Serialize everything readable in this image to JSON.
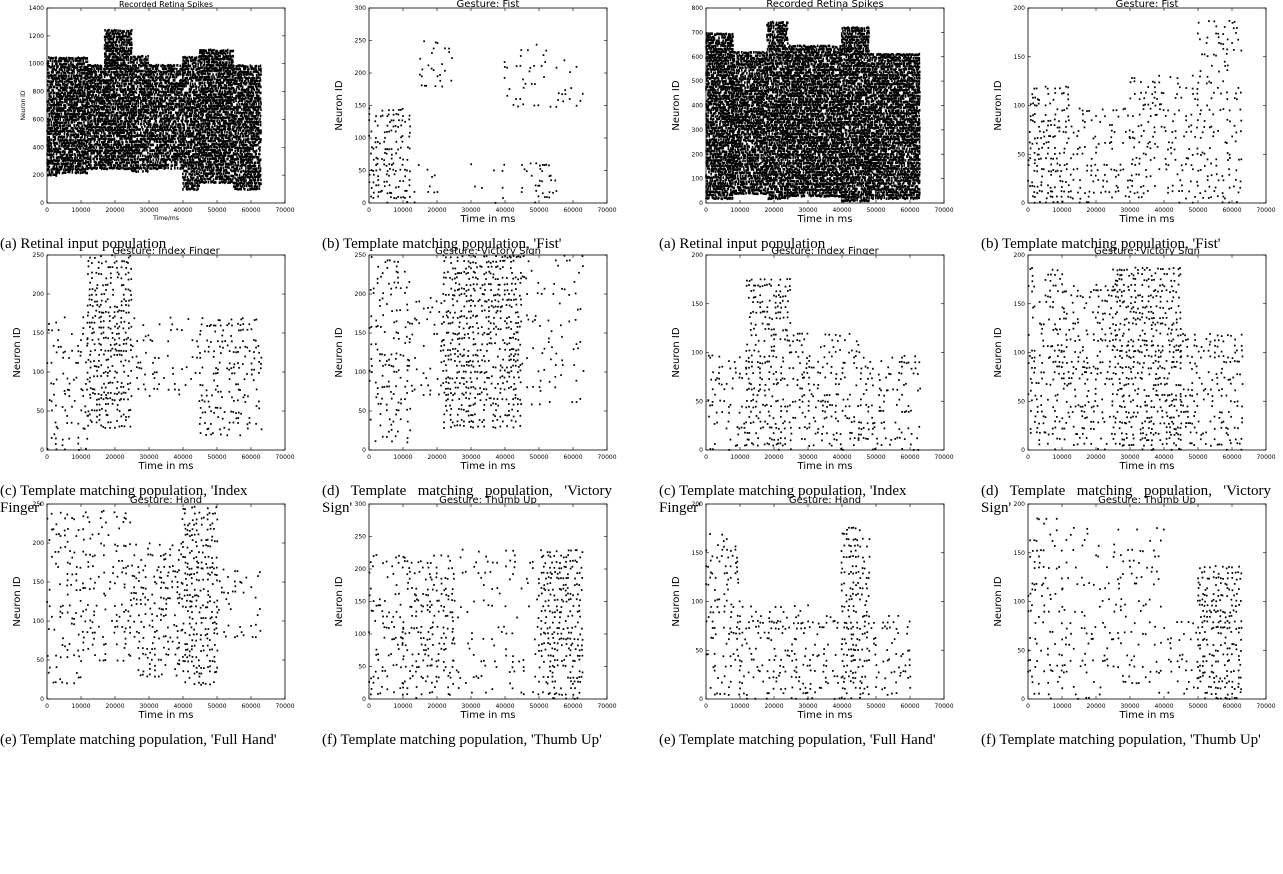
{
  "figure_left": {
    "panels": [
      {
        "id": "a",
        "title": "Recorded Retina Spikes",
        "xlabel": "Time/ms",
        "ylabel": "Neuron ID",
        "caption": "(a) Retinal input population",
        "yticks": [
          "0",
          "200",
          "400",
          "600",
          "800",
          "1000",
          "1200",
          "1400"
        ],
        "ymax": 1400
      },
      {
        "id": "b",
        "title": "Gesture: Fist",
        "xlabel": "Time in ms",
        "ylabel": "Neuron ID",
        "caption": "(b) Template matching population, 'Fist'",
        "yticks": [
          "0",
          "50",
          "100",
          "150",
          "200",
          "250",
          "300"
        ],
        "ymax": 300
      },
      {
        "id": "c",
        "title": "Gesture: Index Finger",
        "xlabel": "Time in ms",
        "ylabel": "Neuron ID",
        "caption": "(c) Template matching population, 'Index Finger'",
        "yticks": [
          "0",
          "50",
          "100",
          "150",
          "200",
          "250"
        ],
        "ymax": 250
      },
      {
        "id": "d",
        "title": "Gesture: Victory Sign",
        "xlabel": "Time in ms",
        "ylabel": "Neuron ID",
        "caption": "(d) Template matching population, 'Victory Sign'",
        "yticks": [
          "0",
          "50",
          "100",
          "150",
          "200",
          "250"
        ],
        "ymax": 250
      },
      {
        "id": "e",
        "title": "Gesture: Hand",
        "xlabel": "Time in ms",
        "ylabel": "Neuron ID",
        "caption": "(e) Template matching population, 'Full Hand'",
        "yticks": [
          "0",
          "50",
          "100",
          "150",
          "200",
          "250"
        ],
        "ymax": 250
      },
      {
        "id": "f",
        "title": "Gesture: Thumb Up",
        "xlabel": "Time in ms",
        "ylabel": "Neuron ID",
        "caption": "(f) Template matching population, 'Thumb Up'",
        "yticks": [
          "0",
          "50",
          "100",
          "150",
          "200",
          "250",
          "300"
        ],
        "ymax": 300
      }
    ]
  },
  "figure_right": {
    "panels": [
      {
        "id": "a",
        "title": "Recorded Retina Spikes",
        "xlabel": "Time in ms",
        "ylabel": "Neuron ID",
        "caption": "(a) Retinal input population",
        "yticks": [
          "0",
          "100",
          "200",
          "300",
          "400",
          "500",
          "600",
          "700",
          "800"
        ],
        "ymax": 800
      },
      {
        "id": "b",
        "title": "Gesture: Fist",
        "xlabel": "Time in ms",
        "ylabel": "Neuron ID",
        "caption": "(b) Template matching population, 'Fist'",
        "yticks": [
          "0",
          "50",
          "100",
          "150",
          "200"
        ],
        "ymax": 200
      },
      {
        "id": "c",
        "title": "Gesture: Index Finger",
        "xlabel": "Time in ms",
        "ylabel": "Neuron ID",
        "caption": "(c) Template matching population, 'Index Finger'",
        "yticks": [
          "0",
          "50",
          "100",
          "150",
          "200"
        ],
        "ymax": 200
      },
      {
        "id": "d",
        "title": "Gesture: Victory Sign",
        "xlabel": "Time in ms",
        "ylabel": "Neuron ID",
        "caption": "(d) Template matching population, 'Victory Sign'",
        "yticks": [
          "0",
          "50",
          "100",
          "150",
          "200"
        ],
        "ymax": 200
      },
      {
        "id": "e",
        "title": "Gesture: Hand",
        "xlabel": "Time in ms",
        "ylabel": "Neuron ID",
        "caption": "(e) Template matching population, 'Full Hand'",
        "yticks": [
          "0",
          "50",
          "100",
          "150",
          "200"
        ],
        "ymax": 200
      },
      {
        "id": "f",
        "title": "Gesture: Thumb Up",
        "xlabel": "Time in ms",
        "ylabel": "Neuron ID",
        "caption": "(f) Template matching population, 'Thumb Up'",
        "yticks": [
          "0",
          "50",
          "100",
          "150",
          "200"
        ],
        "ymax": 200
      }
    ]
  },
  "chart_data": [
    {
      "type": "scatter",
      "figure": "left",
      "panel": "a",
      "title": "Recorded Retina Spikes",
      "xlabel": "Time/ms",
      "ylabel": "Neuron ID",
      "xlim": [
        0,
        70000
      ],
      "ylim": [
        0,
        1400
      ],
      "xticks": [
        0,
        10000,
        20000,
        30000,
        40000,
        50000,
        60000,
        70000
      ],
      "yticks": [
        0,
        200,
        400,
        600,
        800,
        1000,
        1200,
        1400
      ],
      "grid": false,
      "legend": "none",
      "density": [
        [
          0,
          3000,
          200,
          1050,
          0.9
        ],
        [
          3000,
          12000,
          220,
          1050,
          0.95
        ],
        [
          12000,
          17000,
          250,
          1000,
          0.9
        ],
        [
          17000,
          25000,
          250,
          1250,
          0.95
        ],
        [
          25000,
          30000,
          230,
          1050,
          0.85
        ],
        [
          30000,
          40000,
          250,
          1000,
          0.9
        ],
        [
          40000,
          45000,
          100,
          1050,
          0.9
        ],
        [
          45000,
          55000,
          150,
          1100,
          0.95
        ],
        [
          55000,
          63000,
          100,
          1000,
          0.9
        ]
      ]
    },
    {
      "type": "scatter",
      "figure": "left",
      "panel": "b",
      "title": "Gesture: Fist",
      "xlabel": "Time in ms",
      "ylabel": "Neuron ID",
      "xlim": [
        0,
        70000
      ],
      "ylim": [
        0,
        300
      ],
      "xticks": [
        0,
        10000,
        20000,
        30000,
        40000,
        50000,
        60000,
        70000
      ],
      "yticks": [
        0,
        50,
        100,
        150,
        200,
        250,
        300
      ],
      "grid": false,
      "legend": "none",
      "density": [
        [
          0,
          12000,
          0,
          150,
          0.75
        ],
        [
          12000,
          20000,
          0,
          60,
          0.2
        ],
        [
          15000,
          25000,
          180,
          250,
          0.25
        ],
        [
          30000,
          40000,
          0,
          60,
          0.15
        ],
        [
          45000,
          55000,
          0,
          60,
          0.5
        ],
        [
          40000,
          55000,
          150,
          250,
          0.2
        ],
        [
          55000,
          63000,
          150,
          220,
          0.25
        ]
      ]
    },
    {
      "type": "scatter",
      "figure": "left",
      "panel": "c",
      "title": "Gesture: Index Finger",
      "xlabel": "Time in ms",
      "ylabel": "Neuron ID",
      "xlim": [
        0,
        70000
      ],
      "ylim": [
        0,
        250
      ],
      "xticks": [
        0,
        10000,
        20000,
        30000,
        40000,
        50000,
        60000,
        70000
      ],
      "yticks": [
        0,
        50,
        100,
        150,
        200,
        250
      ],
      "grid": false,
      "legend": "none",
      "density": [
        [
          0,
          12000,
          0,
          170,
          0.4
        ],
        [
          12000,
          25000,
          30,
          250,
          0.85
        ],
        [
          25000,
          45000,
          70,
          170,
          0.3
        ],
        [
          45000,
          63000,
          20,
          170,
          0.5
        ]
      ]
    },
    {
      "type": "scatter",
      "figure": "left",
      "panel": "d",
      "title": "Gesture: Victory Sign",
      "xlabel": "Time in ms",
      "ylabel": "Neuron ID",
      "xlim": [
        0,
        70000
      ],
      "ylim": [
        0,
        250
      ],
      "xticks": [
        0,
        10000,
        20000,
        30000,
        40000,
        50000,
        60000,
        70000
      ],
      "yticks": [
        0,
        50,
        100,
        150,
        200,
        250
      ],
      "grid": false,
      "legend": "none",
      "density": [
        [
          0,
          12000,
          10,
          250,
          0.35
        ],
        [
          12000,
          22000,
          70,
          200,
          0.25
        ],
        [
          22000,
          45000,
          30,
          250,
          0.9
        ],
        [
          45000,
          63000,
          60,
          250,
          0.2
        ]
      ]
    },
    {
      "type": "scatter",
      "figure": "left",
      "panel": "e",
      "title": "Gesture: Hand",
      "xlabel": "Time in ms",
      "ylabel": "Neuron ID",
      "xlim": [
        0,
        70000
      ],
      "ylim": [
        0,
        250
      ],
      "xticks": [
        0,
        10000,
        20000,
        30000,
        40000,
        50000,
        60000,
        70000
      ],
      "yticks": [
        0,
        50,
        100,
        150,
        200,
        250
      ],
      "grid": false,
      "legend": "none",
      "density": [
        [
          0,
          10000,
          20,
          240,
          0.3
        ],
        [
          10000,
          25000,
          50,
          240,
          0.35
        ],
        [
          25000,
          40000,
          30,
          200,
          0.5
        ],
        [
          40000,
          50000,
          20,
          250,
          0.85
        ],
        [
          50000,
          63000,
          80,
          170,
          0.3
        ]
      ]
    },
    {
      "type": "scatter",
      "figure": "left",
      "panel": "f",
      "title": "Gesture: Thumb Up",
      "xlabel": "Time in ms",
      "ylabel": "Neuron ID",
      "xlim": [
        0,
        70000
      ],
      "ylim": [
        0,
        300
      ],
      "xticks": [
        0,
        10000,
        20000,
        30000,
        40000,
        50000,
        60000,
        70000
      ],
      "yticks": [
        0,
        50,
        100,
        150,
        200,
        250,
        300
      ],
      "grid": false,
      "legend": "none",
      "density": [
        [
          0,
          10000,
          0,
          220,
          0.35
        ],
        [
          10000,
          25000,
          0,
          220,
          0.5
        ],
        [
          25000,
          50000,
          0,
          230,
          0.15
        ],
        [
          50000,
          63000,
          0,
          230,
          0.85
        ]
      ]
    },
    {
      "type": "scatter",
      "figure": "right",
      "panel": "a",
      "title": "Recorded Retina Spikes",
      "xlabel": "Time in ms",
      "ylabel": "Neuron ID",
      "xlim": [
        0,
        70000
      ],
      "ylim": [
        0,
        800
      ],
      "xticks": [
        0,
        10000,
        20000,
        30000,
        40000,
        50000,
        60000,
        70000
      ],
      "yticks": [
        0,
        100,
        200,
        300,
        400,
        500,
        600,
        700,
        800
      ],
      "grid": false,
      "legend": "none",
      "density": [
        [
          0,
          8000,
          20,
          700,
          0.95
        ],
        [
          8000,
          18000,
          40,
          620,
          0.9
        ],
        [
          18000,
          24000,
          20,
          750,
          0.9
        ],
        [
          24000,
          40000,
          30,
          650,
          0.95
        ],
        [
          40000,
          48000,
          10,
          720,
          0.95
        ],
        [
          48000,
          63000,
          20,
          620,
          0.95
        ]
      ]
    },
    {
      "type": "scatter",
      "figure": "right",
      "panel": "b",
      "title": "Gesture: Fist",
      "xlabel": "Time in ms",
      "ylabel": "Neuron ID",
      "xlim": [
        0,
        70000
      ],
      "ylim": [
        0,
        200
      ],
      "xticks": [
        0,
        10000,
        20000,
        30000,
        40000,
        50000,
        60000,
        70000
      ],
      "yticks": [
        0,
        50,
        100,
        150,
        200
      ],
      "grid": false,
      "legend": "none",
      "density": [
        [
          0,
          12000,
          0,
          120,
          0.7
        ],
        [
          12000,
          30000,
          0,
          100,
          0.35
        ],
        [
          30000,
          50000,
          0,
          130,
          0.4
        ],
        [
          50000,
          63000,
          0,
          190,
          0.35
        ]
      ]
    },
    {
      "type": "scatter",
      "figure": "right",
      "panel": "c",
      "title": "Gesture: Index Finger",
      "xlabel": "Time in ms",
      "ylabel": "Neuron ID",
      "xlim": [
        0,
        70000
      ],
      "ylim": [
        0,
        200
      ],
      "xticks": [
        0,
        10000,
        20000,
        30000,
        40000,
        50000,
        60000,
        70000
      ],
      "yticks": [
        0,
        50,
        100,
        150,
        200
      ],
      "grid": false,
      "legend": "none",
      "density": [
        [
          0,
          12000,
          0,
          100,
          0.4
        ],
        [
          12000,
          25000,
          0,
          180,
          0.75
        ],
        [
          25000,
          45000,
          0,
          120,
          0.5
        ],
        [
          45000,
          63000,
          0,
          100,
          0.4
        ]
      ]
    },
    {
      "type": "scatter",
      "figure": "right",
      "panel": "d",
      "title": "Gesture: Victory Sign",
      "xlabel": "Time in ms",
      "ylabel": "Neuron ID",
      "xlim": [
        0,
        70000
      ],
      "ylim": [
        0,
        200
      ],
      "xticks": [
        0,
        10000,
        20000,
        30000,
        40000,
        50000,
        60000,
        70000
      ],
      "yticks": [
        0,
        50,
        100,
        150,
        200
      ],
      "grid": false,
      "legend": "none",
      "density": [
        [
          0,
          10000,
          0,
          190,
          0.45
        ],
        [
          10000,
          25000,
          0,
          170,
          0.5
        ],
        [
          25000,
          45000,
          0,
          190,
          0.85
        ],
        [
          45000,
          63000,
          0,
          120,
          0.5
        ]
      ]
    },
    {
      "type": "scatter",
      "figure": "right",
      "panel": "e",
      "title": "Gesture: Hand",
      "xlabel": "Time in ms",
      "ylabel": "Neuron ID",
      "xlim": [
        0,
        70000
      ],
      "ylim": [
        0,
        200
      ],
      "xticks": [
        0,
        10000,
        20000,
        30000,
        40000,
        50000,
        60000,
        70000
      ],
      "yticks": [
        0,
        50,
        100,
        150,
        200
      ],
      "grid": false,
      "legend": "none",
      "density": [
        [
          0,
          10000,
          0,
          170,
          0.45
        ],
        [
          10000,
          30000,
          0,
          100,
          0.5
        ],
        [
          30000,
          40000,
          0,
          90,
          0.35
        ],
        [
          40000,
          48000,
          0,
          180,
          0.75
        ],
        [
          48000,
          60000,
          0,
          90,
          0.3
        ]
      ]
    },
    {
      "type": "scatter",
      "figure": "right",
      "panel": "f",
      "title": "Gesture: Thumb Up",
      "xlabel": "Time in ms",
      "ylabel": "Neuron ID",
      "xlim": [
        0,
        70000
      ],
      "ylim": [
        0,
        200
      ],
      "xticks": [
        0,
        10000,
        20000,
        30000,
        40000,
        50000,
        60000,
        70000
      ],
      "yticks": [
        0,
        50,
        100,
        150,
        200
      ],
      "grid": false,
      "legend": "none",
      "density": [
        [
          0,
          10000,
          0,
          190,
          0.3
        ],
        [
          10000,
          40000,
          0,
          180,
          0.2
        ],
        [
          40000,
          50000,
          0,
          80,
          0.2
        ],
        [
          50000,
          63000,
          0,
          140,
          0.85
        ]
      ]
    }
  ]
}
